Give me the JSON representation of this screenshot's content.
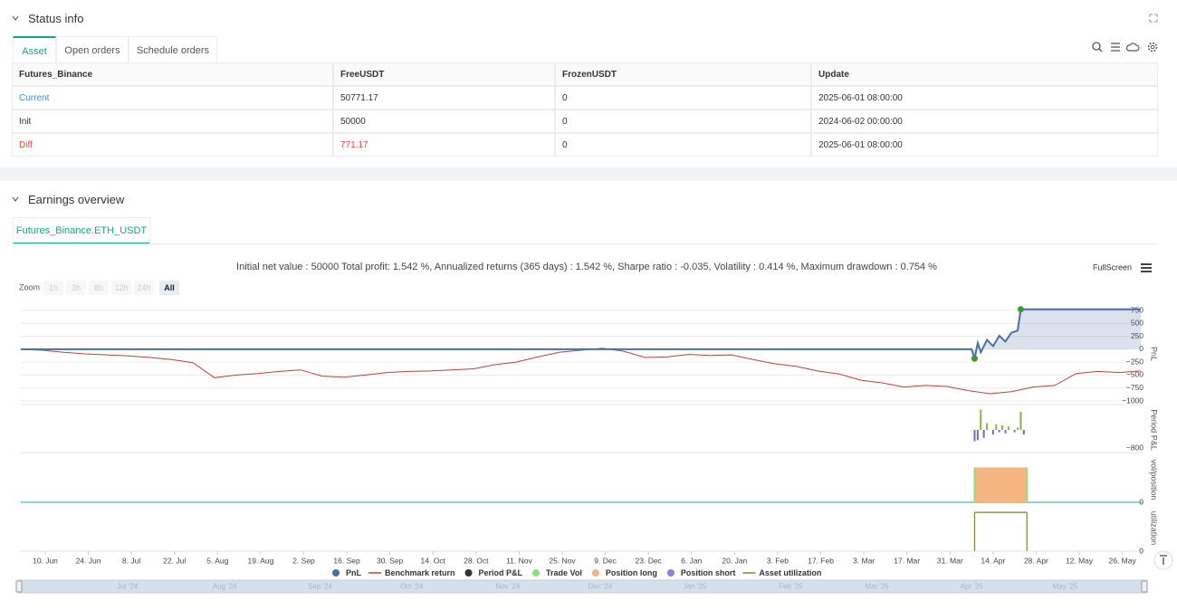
{
  "status_info": {
    "title": "Status info",
    "tabs": [
      "Asset",
      "Open orders",
      "Schedule orders"
    ],
    "table": {
      "columns": [
        "Futures_Binance",
        "FreeUSDT",
        "FrozenUSDT",
        "Update"
      ],
      "rows": [
        [
          "Current",
          "50771.17",
          "0",
          "2025-06-01 08:00:00"
        ],
        [
          "Init",
          "50000",
          "0",
          "2024-06-02 00:00:00"
        ],
        [
          "Diff",
          "771.17",
          "0",
          "2025-06-01 08:00:00"
        ]
      ]
    }
  },
  "earnings_overview": {
    "title": "Earnings overview",
    "tab": "Futures_Binance.ETH_USDT",
    "summary": "Initial net value : 50000 Total profit: 1.542 %, Annualized returns (365 days) : 1.542 %, Sharpe ratio : -0.035, Volatility : 0.414 %, Maximum drawdown : 0.754 %",
    "fullscreen": "FullScreen",
    "zoom": {
      "label": "Zoom",
      "options": [
        "1h",
        "3h",
        "8h",
        "12h",
        "24h",
        "All"
      ]
    },
    "navigator_labels": [
      {
        "value": "2024-07-01",
        "label": "Jul '24"
      },
      {
        "value": "2024-08-01",
        "label": "Aug '24"
      },
      {
        "value": "2024-09-01",
        "label": "Sep '24"
      },
      {
        "value": "2024-10-01",
        "label": "Oct '24"
      },
      {
        "value": "2024-11-01",
        "label": "Nov '24"
      },
      {
        "value": "2024-12-01",
        "label": "Dec '24"
      },
      {
        "value": "2025-01-01",
        "label": "Jan '25"
      },
      {
        "value": "2025-02-01",
        "label": "Feb '25"
      },
      {
        "value": "2025-03-01",
        "label": "Mar '25"
      },
      {
        "value": "2025-04-01",
        "label": "Apr '25"
      },
      {
        "value": "2025-05-01",
        "label": "May '25"
      }
    ]
  },
  "chart_data": {
    "type": "line",
    "xlim": [
      "2024-06-02",
      "2025-06-01"
    ],
    "xticks": [
      {
        "value": "2024-06-10",
        "label": "10. Jun"
      },
      {
        "value": "2024-06-24",
        "label": "24. Jun"
      },
      {
        "value": "2024-07-08",
        "label": "8. Jul"
      },
      {
        "value": "2024-07-22",
        "label": "22. Jul"
      },
      {
        "value": "2024-08-05",
        "label": "5. Aug"
      },
      {
        "value": "2024-08-19",
        "label": "19. Aug"
      },
      {
        "value": "2024-09-02",
        "label": "2. Sep"
      },
      {
        "value": "2024-09-16",
        "label": "16. Sep"
      },
      {
        "value": "2024-09-30",
        "label": "30. Sep"
      },
      {
        "value": "2024-10-14",
        "label": "14. Oct"
      },
      {
        "value": "2024-10-28",
        "label": "28. Oct"
      },
      {
        "value": "2024-11-11",
        "label": "11. Nov"
      },
      {
        "value": "2024-11-25",
        "label": "25. Nov"
      },
      {
        "value": "2024-12-09",
        "label": "9. Dec"
      },
      {
        "value": "2024-12-23",
        "label": "23. Dec"
      },
      {
        "value": "2025-01-06",
        "label": "6. Jan"
      },
      {
        "value": "2025-01-20",
        "label": "20. Jan"
      },
      {
        "value": "2025-02-03",
        "label": "3. Feb"
      },
      {
        "value": "2025-02-17",
        "label": "17. Feb"
      },
      {
        "value": "2025-03-03",
        "label": "3. Mar"
      },
      {
        "value": "2025-03-17",
        "label": "17. Mar"
      },
      {
        "value": "2025-03-31",
        "label": "31. Mar"
      },
      {
        "value": "2025-04-14",
        "label": "14. Apr"
      },
      {
        "value": "2025-04-28",
        "label": "28. Apr"
      },
      {
        "value": "2025-05-12",
        "label": "12. May"
      },
      {
        "value": "2025-05-26",
        "label": "26. May"
      }
    ],
    "panels": [
      {
        "axis_label": "PnL",
        "ylim": [
          -1070,
          890
        ],
        "grid": true,
        "yticks": [
          750,
          500,
          250,
          0,
          {
            "value": -250,
            "label": "−250"
          },
          {
            "value": -500,
            "label": "−500"
          },
          {
            "value": -750,
            "label": "−750"
          },
          {
            "value": -1000,
            "label": "−1000"
          }
        ]
      },
      {
        "axis_label": "Period P&L",
        "ylim": [
          -1000,
          1000
        ],
        "grid": false,
        "yticks": [
          {
            "value": -800,
            "label": "−800"
          }
        ]
      },
      {
        "axis_label": "vol/position",
        "ylim": [
          0,
          1.3
        ],
        "grid": false,
        "yticks": [
          0
        ]
      },
      {
        "axis_label": "utilization",
        "ylim": [
          0,
          0.95
        ],
        "grid": false,
        "yticks": [
          0
        ]
      }
    ],
    "series": [
      {
        "name": "PnL",
        "type": "area",
        "panel": 0,
        "color": "#4a6fa5",
        "marker_color": "#3a9a2e",
        "x": [
          "2024-06-02",
          "2025-04-07",
          "2025-04-08",
          "2025-04-09",
          "2025-04-10",
          "2025-04-12",
          "2025-04-14",
          "2025-04-16",
          "2025-04-18",
          "2025-04-20",
          "2025-04-22",
          "2025-04-23",
          "2025-06-01"
        ],
        "values": [
          0,
          0,
          -180,
          120,
          -60,
          180,
          60,
          260,
          150,
          320,
          360,
          771.17,
          771.17
        ]
      },
      {
        "name": "Benchmark return",
        "type": "line",
        "panel": 0,
        "color": "#b5443a",
        "x": [
          "2024-06-02",
          "2024-06-09",
          "2024-06-16",
          "2024-06-23",
          "2024-06-30",
          "2024-07-07",
          "2024-07-14",
          "2024-07-21",
          "2024-07-28",
          "2024-08-04",
          "2024-08-11",
          "2024-08-18",
          "2024-08-25",
          "2024-09-01",
          "2024-09-08",
          "2024-09-15",
          "2024-09-22",
          "2024-09-29",
          "2024-10-06",
          "2024-10-13",
          "2024-10-20",
          "2024-10-27",
          "2024-11-03",
          "2024-11-10",
          "2024-11-17",
          "2024-11-24",
          "2024-12-01",
          "2024-12-08",
          "2024-12-15",
          "2024-12-22",
          "2024-12-29",
          "2025-01-05",
          "2025-01-12",
          "2025-01-19",
          "2025-01-26",
          "2025-02-02",
          "2025-02-09",
          "2025-02-16",
          "2025-02-23",
          "2025-03-02",
          "2025-03-09",
          "2025-03-16",
          "2025-03-23",
          "2025-03-30",
          "2025-04-06",
          "2025-04-13",
          "2025-04-20",
          "2025-04-27",
          "2025-05-04",
          "2025-05-11",
          "2025-05-18",
          "2025-05-25",
          "2025-06-01"
        ],
        "values": [
          0,
          -20,
          -60,
          -90,
          -110,
          -130,
          -160,
          -200,
          -260,
          -550,
          -500,
          -470,
          -430,
          -400,
          -520,
          -540,
          -500,
          -450,
          -430,
          -420,
          -400,
          -380,
          -300,
          -250,
          -150,
          -60,
          -20,
          20,
          -40,
          -160,
          -150,
          -100,
          -120,
          -110,
          -200,
          -280,
          -330,
          -420,
          -480,
          -600,
          -650,
          -730,
          -700,
          -720,
          -800,
          -860,
          -820,
          -730,
          -700,
          -470,
          -430,
          -450,
          -420
        ]
      },
      {
        "name": "Period P&L",
        "type": "bar",
        "panel": 1,
        "color": "#333333",
        "positive_color": "#8db04a",
        "negative_color": "#7468c8",
        "x": [
          "2025-04-08",
          "2025-04-09",
          "2025-04-10",
          "2025-04-11",
          "2025-04-12",
          "2025-04-14",
          "2025-04-15",
          "2025-04-16",
          "2025-04-17",
          "2025-04-18",
          "2025-04-19",
          "2025-04-21",
          "2025-04-22",
          "2025-04-23",
          "2025-04-24"
        ],
        "values": [
          -500,
          -450,
          900,
          -350,
          300,
          -200,
          250,
          -100,
          200,
          -150,
          150,
          -100,
          100,
          800,
          -200
        ]
      },
      {
        "name": "Trade Vol",
        "type": "bar",
        "panel": 2,
        "color": "#90e07a",
        "x": [
          "2025-04-08",
          "2025-04-25"
        ],
        "values": [
          1,
          1
        ]
      },
      {
        "name": "Position long",
        "type": "band",
        "panel": 2,
        "color": "#f5b581",
        "x": [
          "2025-04-08",
          "2025-04-25"
        ],
        "values": [
          1,
          1
        ]
      },
      {
        "name": "Position short",
        "type": "band",
        "panel": 2,
        "color": "#8a7fe0",
        "x": [],
        "values": []
      },
      {
        "name": "Asset utilization",
        "type": "step",
        "panel": 3,
        "color": "#8a7a3a",
        "x": [
          "2025-04-08",
          "2025-04-25"
        ],
        "values": [
          0.8,
          0.8
        ]
      }
    ]
  }
}
